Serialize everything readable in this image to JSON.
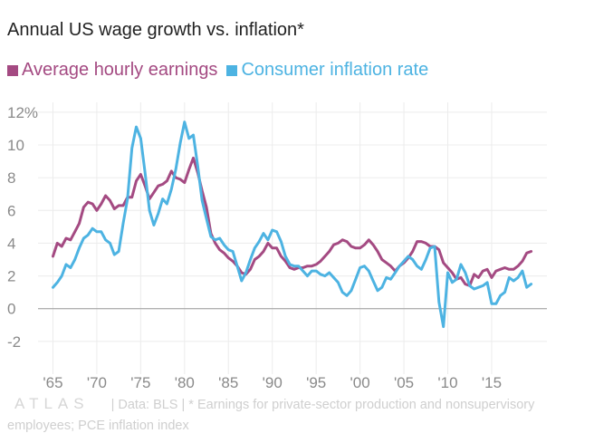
{
  "chart_data": {
    "type": "line",
    "title": "Annual US wage growth vs. inflation*",
    "xlim": [
      1963.3,
      2021.3
    ],
    "ylim": [
      -4,
      12.6
    ],
    "y_ticks": [
      -2,
      0,
      2,
      4,
      6,
      8,
      10,
      12
    ],
    "y_tick_labels": [
      "-2",
      "0",
      "2",
      "4",
      "6",
      "8",
      "10",
      "12%"
    ],
    "x_ticks": [
      1965,
      1970,
      1975,
      1980,
      1985,
      1990,
      1995,
      2000,
      2005,
      2010,
      2015
    ],
    "x_tick_labels": [
      "'65",
      "'70",
      "'75",
      "'80",
      "'85",
      "'90",
      "'95",
      "'00",
      "'05",
      "'10",
      "'15"
    ],
    "grid": true,
    "legend_position": "top-left",
    "series": [
      {
        "name": "Average hourly earnings",
        "color": "#a44a82",
        "points": [
          [
            1965.0,
            3.2
          ],
          [
            1965.5,
            4.0
          ],
          [
            1966.0,
            3.8
          ],
          [
            1966.5,
            4.3
          ],
          [
            1967.0,
            4.2
          ],
          [
            1967.5,
            4.7
          ],
          [
            1968.0,
            5.2
          ],
          [
            1968.5,
            6.2
          ],
          [
            1969.0,
            6.5
          ],
          [
            1969.5,
            6.4
          ],
          [
            1970.0,
            6.0
          ],
          [
            1970.5,
            6.4
          ],
          [
            1971.0,
            6.9
          ],
          [
            1971.5,
            6.6
          ],
          [
            1972.0,
            6.1
          ],
          [
            1972.5,
            6.3
          ],
          [
            1973.0,
            6.3
          ],
          [
            1973.5,
            6.8
          ],
          [
            1974.0,
            6.8
          ],
          [
            1974.5,
            7.8
          ],
          [
            1975.0,
            8.2
          ],
          [
            1975.5,
            7.5
          ],
          [
            1976.0,
            6.7
          ],
          [
            1976.5,
            7.1
          ],
          [
            1977.0,
            7.5
          ],
          [
            1977.5,
            7.6
          ],
          [
            1978.0,
            7.8
          ],
          [
            1978.5,
            8.4
          ],
          [
            1979.0,
            8.0
          ],
          [
            1979.5,
            7.9
          ],
          [
            1980.0,
            7.7
          ],
          [
            1980.5,
            8.5
          ],
          [
            1981.0,
            9.2
          ],
          [
            1981.5,
            8.3
          ],
          [
            1982.0,
            7.2
          ],
          [
            1982.5,
            6.2
          ],
          [
            1983.0,
            4.6
          ],
          [
            1983.5,
            4.0
          ],
          [
            1984.0,
            3.6
          ],
          [
            1984.5,
            3.4
          ],
          [
            1985.0,
            3.1
          ],
          [
            1985.5,
            2.9
          ],
          [
            1986.0,
            2.6
          ],
          [
            1986.5,
            2.2
          ],
          [
            1987.0,
            2.1
          ],
          [
            1987.5,
            2.4
          ],
          [
            1988.0,
            3.0
          ],
          [
            1988.5,
            3.2
          ],
          [
            1989.0,
            3.5
          ],
          [
            1989.5,
            4.0
          ],
          [
            1990.0,
            3.7
          ],
          [
            1990.5,
            3.7
          ],
          [
            1991.0,
            3.2
          ],
          [
            1991.5,
            2.9
          ],
          [
            1992.0,
            2.5
          ],
          [
            1992.5,
            2.4
          ],
          [
            1993.0,
            2.5
          ],
          [
            1993.5,
            2.5
          ],
          [
            1994.0,
            2.6
          ],
          [
            1994.5,
            2.6
          ],
          [
            1995.0,
            2.7
          ],
          [
            1995.5,
            2.9
          ],
          [
            1996.0,
            3.2
          ],
          [
            1996.5,
            3.5
          ],
          [
            1997.0,
            3.9
          ],
          [
            1997.5,
            4.0
          ],
          [
            1998.0,
            4.2
          ],
          [
            1998.5,
            4.1
          ],
          [
            1999.0,
            3.8
          ],
          [
            1999.5,
            3.7
          ],
          [
            2000.0,
            3.7
          ],
          [
            2000.5,
            3.9
          ],
          [
            2001.0,
            4.2
          ],
          [
            2001.5,
            3.9
          ],
          [
            2002.0,
            3.5
          ],
          [
            2002.5,
            3.0
          ],
          [
            2003.0,
            2.8
          ],
          [
            2003.5,
            2.6
          ],
          [
            2004.0,
            2.3
          ],
          [
            2004.5,
            2.6
          ],
          [
            2005.0,
            2.8
          ],
          [
            2005.5,
            3.1
          ],
          [
            2006.0,
            3.5
          ],
          [
            2006.5,
            4.1
          ],
          [
            2007.0,
            4.1
          ],
          [
            2007.5,
            4.0
          ],
          [
            2008.0,
            3.8
          ],
          [
            2008.5,
            3.8
          ],
          [
            2009.0,
            3.6
          ],
          [
            2009.5,
            2.8
          ],
          [
            2010.0,
            2.5
          ],
          [
            2010.5,
            2.2
          ],
          [
            2011.0,
            1.8
          ],
          [
            2011.5,
            1.9
          ],
          [
            2012.0,
            1.5
          ],
          [
            2012.5,
            1.4
          ],
          [
            2013.0,
            2.1
          ],
          [
            2013.5,
            1.9
          ],
          [
            2014.0,
            2.3
          ],
          [
            2014.5,
            2.4
          ],
          [
            2015.0,
            1.9
          ],
          [
            2015.5,
            2.3
          ],
          [
            2016.0,
            2.4
          ],
          [
            2016.5,
            2.5
          ],
          [
            2017.0,
            2.4
          ],
          [
            2017.5,
            2.4
          ],
          [
            2018.0,
            2.6
          ],
          [
            2018.5,
            2.9
          ],
          [
            2019.0,
            3.4
          ],
          [
            2019.5,
            3.5
          ]
        ]
      },
      {
        "name": "Consumer inflation rate",
        "color": "#4db3e2",
        "points": [
          [
            1965.0,
            1.3
          ],
          [
            1965.5,
            1.6
          ],
          [
            1966.0,
            2.0
          ],
          [
            1966.5,
            2.7
          ],
          [
            1967.0,
            2.5
          ],
          [
            1967.5,
            3.0
          ],
          [
            1968.0,
            3.7
          ],
          [
            1968.5,
            4.3
          ],
          [
            1969.0,
            4.5
          ],
          [
            1969.5,
            4.9
          ],
          [
            1970.0,
            4.7
          ],
          [
            1970.5,
            4.7
          ],
          [
            1971.0,
            4.2
          ],
          [
            1971.5,
            4.0
          ],
          [
            1972.0,
            3.3
          ],
          [
            1972.5,
            3.5
          ],
          [
            1973.0,
            5.2
          ],
          [
            1973.5,
            6.7
          ],
          [
            1974.0,
            9.8
          ],
          [
            1974.5,
            11.1
          ],
          [
            1975.0,
            10.4
          ],
          [
            1975.5,
            8.3
          ],
          [
            1976.0,
            6.0
          ],
          [
            1976.5,
            5.1
          ],
          [
            1977.0,
            5.8
          ],
          [
            1977.5,
            6.7
          ],
          [
            1978.0,
            6.4
          ],
          [
            1978.5,
            7.3
          ],
          [
            1979.0,
            8.5
          ],
          [
            1979.5,
            10.1
          ],
          [
            1980.0,
            11.4
          ],
          [
            1980.5,
            10.4
          ],
          [
            1981.0,
            10.6
          ],
          [
            1981.5,
            8.7
          ],
          [
            1982.0,
            6.6
          ],
          [
            1982.5,
            5.5
          ],
          [
            1983.0,
            4.4
          ],
          [
            1983.5,
            4.2
          ],
          [
            1984.0,
            4.3
          ],
          [
            1984.5,
            3.9
          ],
          [
            1985.0,
            3.6
          ],
          [
            1985.5,
            3.5
          ],
          [
            1986.0,
            2.6
          ],
          [
            1986.5,
            1.7
          ],
          [
            1987.0,
            2.2
          ],
          [
            1987.5,
            3.0
          ],
          [
            1988.0,
            3.7
          ],
          [
            1988.5,
            4.1
          ],
          [
            1989.0,
            4.6
          ],
          [
            1989.5,
            4.2
          ],
          [
            1990.0,
            4.8
          ],
          [
            1990.5,
            4.7
          ],
          [
            1991.0,
            4.1
          ],
          [
            1991.5,
            3.2
          ],
          [
            1992.0,
            2.7
          ],
          [
            1992.5,
            2.6
          ],
          [
            1993.0,
            2.6
          ],
          [
            1993.5,
            2.3
          ],
          [
            1994.0,
            2.0
          ],
          [
            1994.5,
            2.3
          ],
          [
            1995.0,
            2.3
          ],
          [
            1995.5,
            2.1
          ],
          [
            1996.0,
            2.0
          ],
          [
            1996.5,
            2.2
          ],
          [
            1997.0,
            1.9
          ],
          [
            1997.5,
            1.6
          ],
          [
            1998.0,
            1.0
          ],
          [
            1998.5,
            0.8
          ],
          [
            1999.0,
            1.1
          ],
          [
            1999.5,
            1.8
          ],
          [
            2000.0,
            2.5
          ],
          [
            2000.5,
            2.6
          ],
          [
            2001.0,
            2.3
          ],
          [
            2001.5,
            1.7
          ],
          [
            2002.0,
            1.1
          ],
          [
            2002.5,
            1.3
          ],
          [
            2003.0,
            1.9
          ],
          [
            2003.5,
            1.8
          ],
          [
            2004.0,
            2.2
          ],
          [
            2004.5,
            2.6
          ],
          [
            2005.0,
            2.9
          ],
          [
            2005.5,
            3.2
          ],
          [
            2006.0,
            3.0
          ],
          [
            2006.5,
            2.6
          ],
          [
            2007.0,
            2.4
          ],
          [
            2007.5,
            3.0
          ],
          [
            2008.0,
            3.7
          ],
          [
            2008.5,
            3.8
          ],
          [
            2009.0,
            0.4
          ],
          [
            2009.5,
            -1.1
          ],
          [
            2010.0,
            2.2
          ],
          [
            2010.5,
            1.6
          ],
          [
            2011.0,
            1.8
          ],
          [
            2011.5,
            2.7
          ],
          [
            2012.0,
            2.2
          ],
          [
            2012.5,
            1.4
          ],
          [
            2013.0,
            1.2
          ],
          [
            2013.5,
            1.3
          ],
          [
            2014.0,
            1.4
          ],
          [
            2014.5,
            1.6
          ],
          [
            2015.0,
            0.3
          ],
          [
            2015.5,
            0.3
          ],
          [
            2016.0,
            0.8
          ],
          [
            2016.5,
            1.0
          ],
          [
            2017.0,
            1.9
          ],
          [
            2017.5,
            1.7
          ],
          [
            2018.0,
            1.9
          ],
          [
            2018.5,
            2.3
          ],
          [
            2019.0,
            1.3
          ],
          [
            2019.5,
            1.5
          ]
        ]
      }
    ],
    "source_note": "| Data: BLS | * Earnings for private-sector production and nonsupervisory employees; PCE inflation index",
    "logo_text": "ATLAS"
  }
}
